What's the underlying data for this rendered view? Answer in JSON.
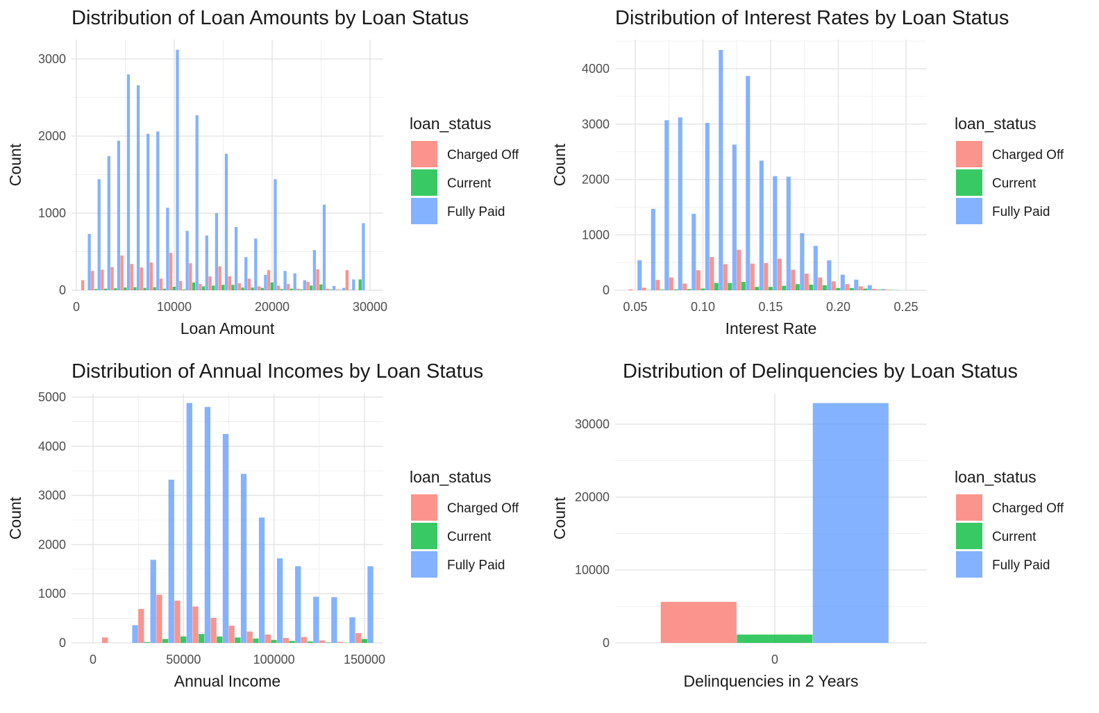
{
  "colors": {
    "Charged Off": "#F8766D",
    "Current": "#00BA38",
    "Fully Paid": "#619CFF"
  },
  "legend": {
    "title": "loan_status",
    "entries": [
      "Charged Off",
      "Current",
      "Fully Paid"
    ]
  },
  "chart_data": [
    {
      "type": "bar",
      "title": "Distribution of Loan Amounts by Loan Status",
      "xlabel": "Loan Amount",
      "ylabel": "Count",
      "xlim": [
        0,
        30000
      ],
      "ylim": [
        0,
        3100
      ],
      "xticks": [
        0,
        10000,
        20000,
        30000
      ],
      "xtick_labels": [
        "0",
        "10000",
        "20000",
        "30000"
      ],
      "yticks": [
        0,
        1000,
        2000,
        3000
      ],
      "ytick_labels": [
        "0",
        "1000",
        "2000",
        "3000"
      ],
      "bin_width": 1000,
      "x": [
        1000,
        2000,
        3000,
        4000,
        5000,
        6000,
        7000,
        8000,
        9000,
        10000,
        11000,
        12000,
        13000,
        14000,
        15000,
        16000,
        17000,
        18000,
        19000,
        20000,
        21000,
        22000,
        23000,
        24000,
        25000,
        26000,
        27000,
        28000,
        29000
      ],
      "series": [
        {
          "name": "Charged Off",
          "values": [
            130,
            250,
            265,
            300,
            450,
            340,
            295,
            360,
            150,
            485,
            120,
            350,
            80,
            180,
            310,
            180,
            90,
            150,
            50,
            260,
            60,
            80,
            20,
            110,
            270,
            20,
            10,
            260,
            0
          ]
        },
        {
          "name": "Current",
          "values": [
            0,
            15,
            20,
            25,
            35,
            40,
            30,
            40,
            20,
            45,
            10,
            100,
            50,
            60,
            70,
            70,
            35,
            35,
            30,
            100,
            15,
            20,
            10,
            60,
            75,
            10,
            5,
            5,
            140
          ]
        },
        {
          "name": "Fully Paid",
          "values": [
            730,
            1440,
            1740,
            1940,
            2800,
            2660,
            2030,
            2060,
            1070,
            3120,
            770,
            2270,
            710,
            1000,
            1770,
            820,
            430,
            670,
            200,
            1440,
            250,
            220,
            130,
            520,
            1110,
            55,
            30,
            140,
            870
          ]
        }
      ]
    },
    {
      "type": "bar",
      "title": "Distribution of Interest Rates by Loan Status",
      "xlabel": "Interest Rate",
      "ylabel": "Count",
      "xlim": [
        0.05,
        0.25
      ],
      "ylim": [
        0,
        4350
      ],
      "xticks": [
        0.05,
        0.1,
        0.15,
        0.2,
        0.25
      ],
      "xtick_labels": [
        "0.05",
        "0.10",
        "0.15",
        "0.20",
        "0.25"
      ],
      "yticks": [
        0,
        1000,
        2000,
        3000,
        4000
      ],
      "ytick_labels": [
        "0",
        "1000",
        "2000",
        "3000",
        "4000"
      ],
      "bin_width": 0.01,
      "x": [
        0.05,
        0.06,
        0.07,
        0.08,
        0.09,
        0.1,
        0.11,
        0.12,
        0.13,
        0.14,
        0.15,
        0.16,
        0.17,
        0.18,
        0.19,
        0.2,
        0.21,
        0.22,
        0.23,
        0.24
      ],
      "series": [
        {
          "name": "Charged Off",
          "values": [
            15,
            45,
            185,
            230,
            120,
            360,
            600,
            470,
            730,
            480,
            490,
            570,
            370,
            300,
            230,
            160,
            110,
            70,
            25,
            10
          ]
        },
        {
          "name": "Current",
          "values": [
            0,
            5,
            10,
            15,
            20,
            30,
            130,
            130,
            150,
            60,
            60,
            80,
            110,
            100,
            90,
            40,
            40,
            30,
            10,
            5
          ]
        },
        {
          "name": "Fully Paid",
          "values": [
            540,
            1470,
            3070,
            3120,
            1380,
            3020,
            4340,
            2630,
            3870,
            2340,
            2060,
            2050,
            1030,
            800,
            540,
            280,
            190,
            90,
            20,
            5
          ]
        }
      ]
    },
    {
      "type": "bar",
      "title": "Distribution of Annual Incomes by Loan Status",
      "xlabel": "Annual Income",
      "ylabel": "Count",
      "xlim": [
        0,
        150000
      ],
      "ylim": [
        0,
        5000
      ],
      "xticks": [
        0,
        50000,
        100000,
        150000
      ],
      "xtick_labels": [
        "0",
        "50000",
        "100000",
        "150000"
      ],
      "yticks": [
        0,
        1000,
        2000,
        3000,
        4000,
        5000
      ],
      "ytick_labels": [
        "0",
        "1000",
        "2000",
        "3000",
        "4000",
        "5000"
      ],
      "bin_width": 10000,
      "x": [
        10000,
        20000,
        30000,
        40000,
        50000,
        60000,
        70000,
        80000,
        90000,
        100000,
        110000,
        120000,
        130000,
        140000,
        150000
      ],
      "series": [
        {
          "name": "Charged Off",
          "values": [
            110,
            0,
            690,
            980,
            860,
            740,
            510,
            350,
            230,
            170,
            100,
            120,
            50,
            20,
            200
          ]
        },
        {
          "name": "Current",
          "values": [
            0,
            0,
            15,
            80,
            130,
            180,
            130,
            110,
            90,
            60,
            40,
            30,
            10,
            5,
            80
          ]
        },
        {
          "name": "Fully Paid",
          "values": [
            0,
            360,
            1690,
            3320,
            4880,
            4800,
            4250,
            3440,
            2550,
            1720,
            1560,
            940,
            930,
            520,
            1560
          ]
        }
      ]
    },
    {
      "type": "bar",
      "title": "Distribution of Delinquencies by Loan Status",
      "xlabel": "Delinquencies in 2 Years",
      "ylabel": "Count",
      "xlim": [
        -0.75,
        0.75
      ],
      "ylim": [
        0,
        32900
      ],
      "xticks": [
        0
      ],
      "xtick_labels": [
        "0"
      ],
      "yticks": [
        0,
        10000,
        20000,
        30000
      ],
      "ytick_labels": [
        "0",
        "10000",
        "20000",
        "30000"
      ],
      "bin_width": 1,
      "x": [
        0
      ],
      "series": [
        {
          "name": "Charged Off",
          "values": [
            5630
          ]
        },
        {
          "name": "Current",
          "values": [
            1140
          ]
        },
        {
          "name": "Fully Paid",
          "values": [
            32900
          ]
        }
      ]
    }
  ]
}
